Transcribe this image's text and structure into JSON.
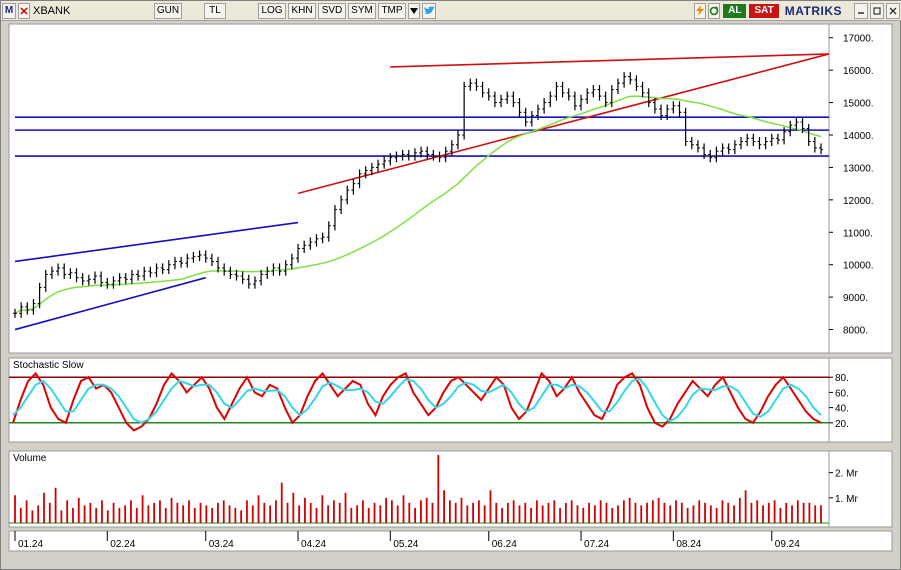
{
  "window": {
    "app_icon": "M",
    "symbol": "XBANK",
    "buttons": [
      "GUN",
      "TL",
      "LOG",
      "KHN",
      "SVD",
      "SYM",
      "TMP"
    ],
    "al_label": "AL",
    "sat_label": "SAT",
    "brand": "MATRIKS",
    "colors": {
      "al": "#1e7a1e",
      "sat": "#c81414",
      "brand": "#1a2a7a"
    },
    "icons": [
      "lightning-icon",
      "refresh-icon",
      "chevron-down-icon",
      "twitter-icon",
      "minimize-icon",
      "restore-icon",
      "close-icon"
    ]
  },
  "chart_data": [
    {
      "type": "line",
      "panel": "price",
      "ylim": [
        7400,
        17300
      ],
      "yticks": [
        8000,
        9000,
        10000,
        11000,
        12000,
        13000,
        14000,
        15000,
        16000,
        17000
      ],
      "ytick_labels": [
        "8000.",
        "9000.",
        "10000.",
        "11000.",
        "12000.",
        "13000.",
        "14000.",
        "15000.",
        "16000.",
        "17000."
      ],
      "series": [
        {
          "kind": "price",
          "color": "#000000",
          "values": [
            8500,
            8700,
            8600,
            8800,
            9300,
            9700,
            9800,
            9900,
            9700,
            9750,
            9600,
            9500,
            9550,
            9650,
            9450,
            9400,
            9500,
            9600,
            9550,
            9700,
            9650,
            9800,
            9750,
            9900,
            9850,
            10000,
            10100,
            10050,
            10200,
            10250,
            10300,
            10200,
            10100,
            9900,
            9800,
            9700,
            9650,
            9550,
            9400,
            9500,
            9700,
            9800,
            9900,
            9800,
            10000,
            10200,
            10500,
            10600,
            10700,
            10800,
            10850,
            11200,
            11700,
            12000,
            12300,
            12500,
            12800,
            12900,
            13000,
            13100,
            13200,
            13300,
            13350,
            13400,
            13350,
            13450,
            13500,
            13400,
            13350,
            13300,
            13500,
            13700,
            14000,
            15500,
            15600,
            15500,
            15300,
            15200,
            15000,
            15100,
            15200,
            15000,
            14700,
            14400,
            14600,
            14800,
            15000,
            15200,
            15500,
            15300,
            15200,
            14900,
            15100,
            15300,
            15400,
            15200,
            15000,
            15400,
            15600,
            15800,
            15700,
            15500,
            15300,
            15000,
            14800,
            14600,
            14800,
            14900,
            14700,
            13800,
            13700,
            13600,
            13400,
            13300,
            13500,
            13600,
            13550,
            13700,
            13800,
            13900,
            13800,
            13700,
            13800,
            13900,
            13850,
            14100,
            14300,
            14400,
            14200,
            13800,
            13600,
            13550
          ]
        },
        {
          "kind": "moving-average",
          "color": "#80e040"
        }
      ],
      "trendlines": [
        {
          "color": "#1010c0",
          "from": [
            "01.24",
            10100
          ],
          "to": [
            "04.24",
            11300
          ]
        },
        {
          "color": "#1010c0",
          "from": [
            "01.24",
            8000
          ],
          "to": [
            "03.24",
            9600
          ]
        },
        {
          "color": "#1010c0",
          "from": [
            "01.24",
            14550
          ],
          "to": [
            "09.24",
            14550
          ]
        },
        {
          "color": "#1010c0",
          "from": [
            "01.24",
            14150
          ],
          "to": [
            "09.24",
            14150
          ]
        },
        {
          "color": "#1010c0",
          "from": [
            "01.24",
            13350
          ],
          "to": [
            "09.24",
            13350
          ]
        },
        {
          "color": "#d01010",
          "from": [
            "04.24",
            12200
          ],
          "to": [
            "09.24",
            16500
          ]
        },
        {
          "color": "#d01010",
          "from": [
            "05.24",
            16100
          ],
          "to": [
            "09.24",
            16500
          ]
        }
      ]
    },
    {
      "type": "line",
      "panel": "oscillator",
      "title": "Stochastic Slow",
      "ylim": [
        0,
        100
      ],
      "yticks": [
        20,
        40,
        60,
        80
      ],
      "ytick_labels": [
        "20.",
        "40.",
        "60.",
        "80."
      ],
      "levels": [
        20,
        80
      ],
      "series": [
        {
          "kind": "%K",
          "color": "#e00000",
          "values": [
            20,
            50,
            75,
            85,
            70,
            40,
            25,
            20,
            50,
            75,
            80,
            65,
            70,
            60,
            40,
            20,
            10,
            15,
            25,
            45,
            70,
            85,
            75,
            60,
            70,
            80,
            65,
            40,
            25,
            45,
            65,
            80,
            60,
            55,
            70,
            65,
            40,
            20,
            30,
            55,
            75,
            85,
            70,
            55,
            65,
            75,
            70,
            45,
            30,
            55,
            70,
            80,
            85,
            60,
            45,
            30,
            40,
            60,
            75,
            80,
            70,
            60,
            50,
            65,
            80,
            70,
            40,
            25,
            35,
            60,
            85,
            75,
            55,
            65,
            80,
            60,
            45,
            30,
            25,
            45,
            70,
            80,
            85,
            70,
            40,
            20,
            15,
            25,
            45,
            60,
            75,
            65,
            55,
            70,
            80,
            60,
            40,
            25,
            20,
            35,
            55,
            70,
            80,
            65,
            50,
            35,
            25,
            20
          ]
        },
        {
          "kind": "%D",
          "color": "#30d8e8",
          "values": [
            30,
            40,
            55,
            70,
            75,
            65,
            50,
            35,
            35,
            50,
            65,
            70,
            70,
            65,
            55,
            40,
            25,
            20,
            25,
            35,
            50,
            65,
            75,
            72,
            68,
            70,
            70,
            60,
            45,
            40,
            50,
            62,
            65,
            62,
            62,
            63,
            55,
            40,
            30,
            38,
            52,
            68,
            73,
            68,
            63,
            63,
            65,
            60,
            48,
            45,
            55,
            67,
            77,
            75,
            65,
            50,
            40,
            45,
            55,
            68,
            73,
            70,
            62,
            60,
            65,
            70,
            60,
            45,
            35,
            40,
            55,
            70,
            70,
            65,
            70,
            68,
            60,
            48,
            35,
            35,
            47,
            62,
            75,
            78,
            65,
            47,
            30,
            22,
            28,
            40,
            57,
            65,
            64,
            63,
            68,
            68,
            62,
            47,
            32,
            28,
            35,
            50,
            65,
            70,
            65,
            55,
            40,
            30
          ]
        }
      ]
    },
    {
      "type": "bar",
      "panel": "volume",
      "title": "Volume",
      "ylim": [
        0,
        2.7
      ],
      "yticks": [
        1,
        2
      ],
      "ytick_labels": [
        "1. Mr",
        "2. Mr"
      ],
      "series": [
        {
          "color": "#d00000",
          "values": [
            1.1,
            0.6,
            0.9,
            0.5,
            0.7,
            1.2,
            0.8,
            1.4,
            0.5,
            0.9,
            0.6,
            1.0,
            0.7,
            0.8,
            0.6,
            0.9,
            0.5,
            0.8,
            0.6,
            0.7,
            0.9,
            0.6,
            1.1,
            0.7,
            0.8,
            0.9,
            0.6,
            1.0,
            0.8,
            0.7,
            0.9,
            0.6,
            0.8,
            0.7,
            0.6,
            0.8,
            0.9,
            0.7,
            0.6,
            0.5,
            0.9,
            0.7,
            1.1,
            0.8,
            0.7,
            0.9,
            1.6,
            0.8,
            1.2,
            0.7,
            1.0,
            0.8,
            0.6,
            1.1,
            0.7,
            0.9,
            0.8,
            1.2,
            0.6,
            0.7,
            0.9,
            0.6,
            0.8,
            0.7,
            1.0,
            0.9,
            0.7,
            1.1,
            0.8,
            0.6,
            0.9,
            1.0,
            0.8,
            2.7,
            1.3,
            0.9,
            0.8,
            1.0,
            0.7,
            0.8,
            0.9,
            0.7,
            1.3,
            0.8,
            0.6,
            0.8,
            0.9,
            0.7,
            0.8,
            0.6,
            0.9,
            0.7,
            0.8,
            0.9,
            0.6,
            0.8,
            0.9,
            0.7,
            0.6,
            0.8,
            0.7,
            0.9,
            0.8,
            0.6,
            0.7,
            0.9,
            1.0,
            0.8,
            0.7,
            0.8,
            0.9,
            1.0,
            0.8,
            0.7,
            0.9,
            0.8,
            0.6,
            0.7,
            0.9,
            0.8,
            0.7,
            0.6,
            0.9,
            0.8,
            0.7,
            1.0,
            1.3,
            0.8,
            0.9,
            0.7,
            0.8,
            0.9,
            0.6,
            0.8,
            0.7,
            0.9,
            0.8,
            0.8,
            0.7,
            0.7
          ]
        }
      ]
    }
  ],
  "x_axis": {
    "labels": [
      "01.24",
      "02.24",
      "03.24",
      "04.24",
      "05.24",
      "06.24",
      "07.24",
      "08.24",
      "09.24"
    ]
  }
}
